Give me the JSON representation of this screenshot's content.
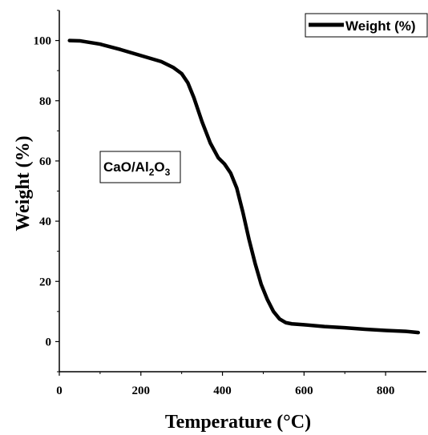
{
  "chart_data": {
    "type": "line",
    "xlabel": "Temperature (°C)",
    "ylabel": "Weight (%)",
    "xlim": [
      0,
      900
    ],
    "ylim": [
      -10,
      110
    ],
    "xticks": [
      0,
      200,
      400,
      600,
      800
    ],
    "yticks": [
      0,
      20,
      40,
      60,
      80,
      100
    ],
    "grid": false,
    "legend_position": "top-right",
    "series": [
      {
        "name": "Weight (%)",
        "color": "#000000",
        "x": [
          25,
          50,
          100,
          150,
          200,
          250,
          280,
          300,
          315,
          330,
          350,
          370,
          390,
          405,
          420,
          435,
          450,
          465,
          480,
          495,
          510,
          525,
          540,
          555,
          570,
          580,
          600,
          650,
          700,
          750,
          800,
          850,
          880
        ],
        "y": [
          100,
          99.9,
          98.8,
          97,
          95,
          93,
          91,
          89,
          86,
          81,
          73,
          66,
          61,
          59,
          56,
          51,
          43,
          34,
          26,
          19,
          14,
          10,
          7.5,
          6.3,
          5.9,
          5.8,
          5.6,
          5.0,
          4.6,
          4.1,
          3.7,
          3.4,
          3.0
        ]
      }
    ],
    "annotations": [
      {
        "text": "CaO/Al",
        "sub1": "2",
        "mid": "O",
        "sub2": "3"
      }
    ]
  }
}
